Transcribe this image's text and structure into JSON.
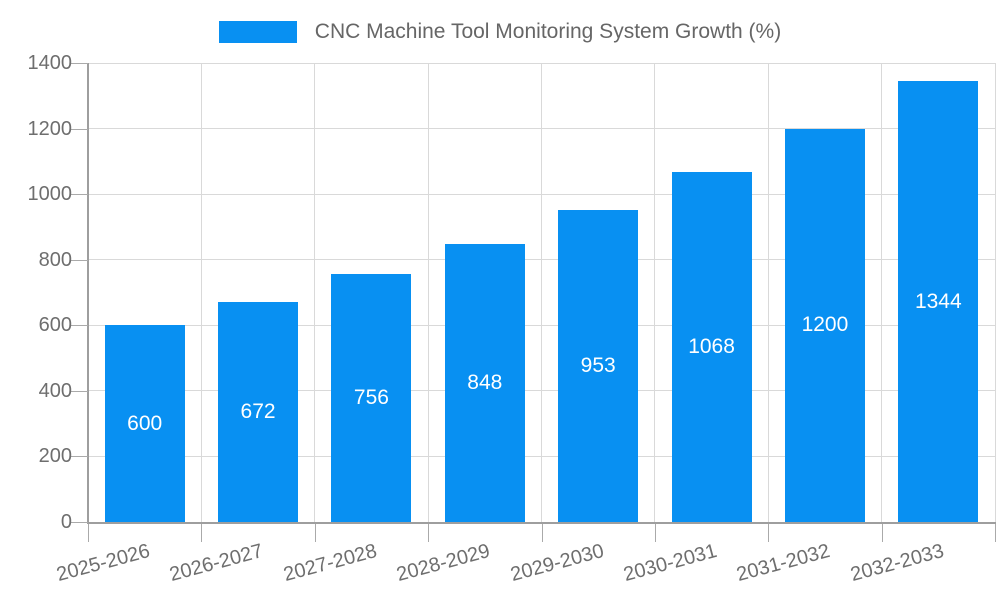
{
  "chart_data": {
    "type": "bar",
    "title": "CNC Machine Tool Monitoring System Growth (%)",
    "categories": [
      "2025-2026",
      "2026-2027",
      "2027-2028",
      "2028-2029",
      "2029-2030",
      "2030-2031",
      "2031-2032",
      "2032-2033"
    ],
    "values": [
      600,
      672,
      756,
      848,
      953,
      1068,
      1200,
      1344
    ],
    "xlabel": "",
    "ylabel": "",
    "ylim": [
      0,
      1400
    ],
    "yticks": [
      0,
      200,
      400,
      600,
      800,
      1000,
      1200,
      1400
    ],
    "grid": true,
    "legend_position": "top-center",
    "x_label_rotation_deg": -15,
    "bar_labels_inside": true,
    "colors": {
      "bar": "#0890f2",
      "bar_label": "#ffffff",
      "axis": "#9e9e9e",
      "tick": "#aaaaaa",
      "gridline": "#d9d9d9",
      "tick_label": "#6e6e6e",
      "title": "#666666"
    }
  }
}
